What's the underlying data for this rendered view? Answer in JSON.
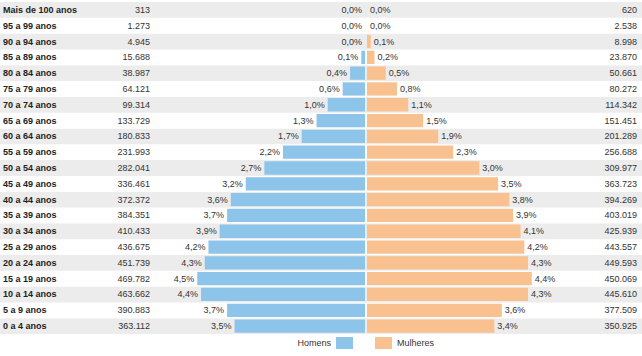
{
  "chart_data": {
    "type": "bar",
    "orientation": "horizontal",
    "categories": [
      "0 a 4 anos",
      "5 a 9 anos",
      "10 a 14 anos",
      "15 a 19 anos",
      "20 a 24 anos",
      "25 a 29 anos",
      "30 a 34 anos",
      "35 a 39 anos",
      "40 a 44 anos",
      "45 a 49 anos",
      "50 a 54 anos",
      "55 a 59 anos",
      "60 a 64 anos",
      "65 a 69 anos",
      "70 a 74 anos",
      "75 a 79 anos",
      "80 a 84 anos",
      "85 a 89 anos",
      "90 a 94 anos",
      "95 a 99 anos",
      "Mais de 100 anos"
    ],
    "series": [
      {
        "name": "Homens",
        "color": "#8cc4ea",
        "values": [
          3.5,
          3.7,
          4.4,
          4.5,
          4.3,
          4.2,
          3.9,
          3.7,
          3.6,
          3.2,
          2.7,
          2.2,
          1.7,
          1.3,
          1.0,
          0.6,
          0.4,
          0.1,
          0.0,
          0.0,
          0.0
        ],
        "value_labels": [
          "3,5%",
          "3,7%",
          "4,4%",
          "4,5%",
          "4,3%",
          "4,2%",
          "3,9%",
          "3,7%",
          "3,6%",
          "3,2%",
          "2,7%",
          "2,2%",
          "1,7%",
          "1,3%",
          "1,0%",
          "0,6%",
          "0,4%",
          "0,1%",
          "0,0%",
          "0,0%",
          "0,0%"
        ],
        "population": [
          363112,
          390883,
          463662,
          469782,
          451739,
          436675,
          410433,
          384351,
          372372,
          336461,
          282041,
          231993,
          180833,
          133729,
          99314,
          64121,
          38987,
          15688,
          4945,
          1273,
          313
        ],
        "population_labels": [
          "363.112",
          "390.883",
          "463.662",
          "469.782",
          "451.739",
          "436.675",
          "410.433",
          "384.351",
          "372.372",
          "336.461",
          "282.041",
          "231.993",
          "180.833",
          "133.729",
          "99.314",
          "64.121",
          "38.987",
          "15.688",
          "4.945",
          "1.273",
          "313"
        ]
      },
      {
        "name": "Mulheres",
        "color": "#f8c18f",
        "values": [
          3.4,
          3.6,
          4.3,
          4.4,
          4.3,
          4.2,
          4.1,
          3.9,
          3.8,
          3.5,
          3.0,
          2.3,
          1.9,
          1.5,
          1.1,
          0.8,
          0.5,
          0.2,
          0.1,
          0.0,
          0.0
        ],
        "value_labels": [
          "3,4%",
          "3,6%",
          "4,3%",
          "4,4%",
          "4,3%",
          "4,2%",
          "4,1%",
          "3,9%",
          "3,8%",
          "3,5%",
          "3,0%",
          "2,3%",
          "1,9%",
          "1,5%",
          "1,1%",
          "0,8%",
          "0,5%",
          "0,2%",
          "0,1%",
          "0,0%",
          "0,0%"
        ],
        "population": [
          350925,
          377509,
          445610,
          450069,
          449593,
          443557,
          425939,
          403019,
          394269,
          363723,
          309977,
          256688,
          201289,
          151451,
          114342,
          80272,
          50661,
          23870,
          8998,
          2538,
          620
        ],
        "population_labels": [
          "350.925",
          "377.509",
          "445.610",
          "450.069",
          "449.593",
          "443.557",
          "425.939",
          "403.019",
          "394.269",
          "363.723",
          "309.977",
          "256.688",
          "201.289",
          "151.451",
          "114.342",
          "80.272",
          "50.661",
          "23.870",
          "8.998",
          "2.538",
          "620"
        ]
      }
    ],
    "xlim": [
      0,
      5.5
    ],
    "xticks": [
      0,
      5.5
    ],
    "grid": false,
    "legend": "bottom",
    "data_labels": true,
    "tick_labels": "y"
  }
}
